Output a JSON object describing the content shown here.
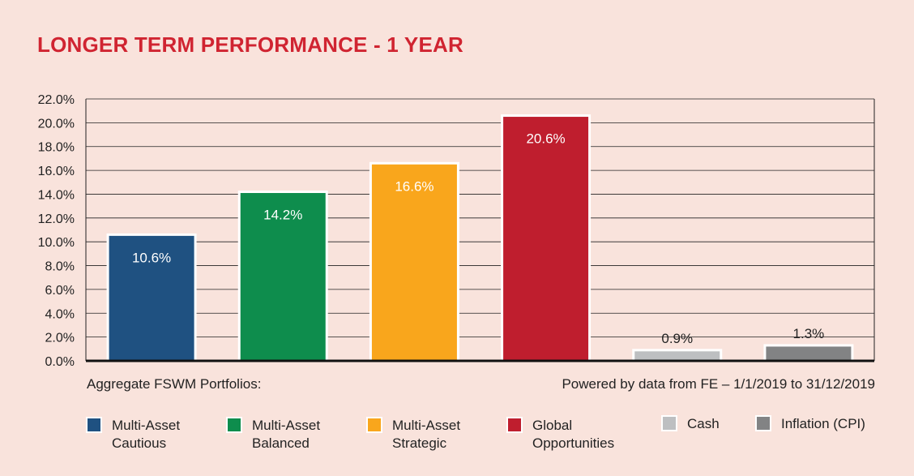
{
  "title": "LONGER TERM PERFORMANCE - 1 YEAR",
  "footnote_left": "Aggregate FSWM Portfolios:",
  "footnote_right": "Powered by data from FE – 1/1/2019 to 31/12/2019",
  "legend": [
    {
      "label": "Multi-Asset\nCautious",
      "color": "#1f5181"
    },
    {
      "label": "Multi-Asset\nBalanced",
      "color": "#0e8d4d"
    },
    {
      "label": "Multi-Asset\nStrategic",
      "color": "#f9a61c"
    },
    {
      "label": "Global\nOpportunities",
      "color": "#bf1e2e"
    },
    {
      "label": "Cash",
      "color": "#bdbfc1"
    },
    {
      "label": "Inflation (CPI)",
      "color": "#828384"
    }
  ],
  "chart_data": {
    "type": "bar",
    "categories": [
      "Multi-Asset Cautious",
      "Multi-Asset Balanced",
      "Multi-Asset Strategic",
      "Global Opportunities",
      "Cash",
      "Inflation (CPI)"
    ],
    "values": [
      10.6,
      14.2,
      16.6,
      20.6,
      0.9,
      1.3
    ],
    "value_labels": [
      "10.6%",
      "14.2%",
      "16.6%",
      "20.6%",
      "0.9%",
      "1.3%"
    ],
    "colors": [
      "#1f5181",
      "#0e8d4d",
      "#f9a61c",
      "#bf1e2e",
      "#bdbfc1",
      "#828384"
    ],
    "ylim": [
      0,
      22
    ],
    "yticks": [
      "0.0%",
      "2.0%",
      "4.0%",
      "6.0%",
      "8.0%",
      "10.0%",
      "12.0%",
      "14.0%",
      "16.0%",
      "18.0%",
      "20.0%",
      "22.0%"
    ],
    "grid": true,
    "legend_position": "bottom"
  }
}
